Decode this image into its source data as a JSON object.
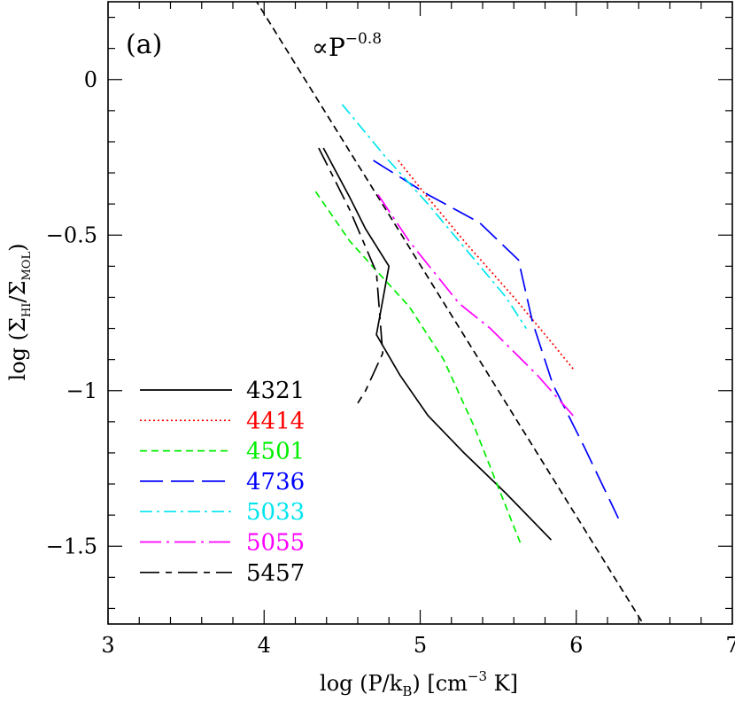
{
  "chart_data": {
    "type": "line",
    "panel_label": "(a)",
    "annotation": "∝P",
    "annotation_exponent": "−0.8",
    "xlabel_prefix": "log (P/k",
    "xlabel_sub": "B",
    "xlabel_suffix": ") [cm",
    "xlabel_sup": "−3",
    "xlabel_end": " K]",
    "ylabel": {
      "prefix": "log (Σ",
      "sub1": "HI",
      "mid": "/Σ",
      "sub2": "MOL",
      "end": ")"
    },
    "xlim": [
      3,
      7
    ],
    "ylim": [
      -1.75,
      0.25
    ],
    "xticks": [
      3,
      4,
      5,
      6,
      7
    ],
    "xtick_labels": [
      "3",
      "4",
      "5",
      "6",
      "7"
    ],
    "yticks": [
      0,
      -0.5,
      -1,
      -1.5
    ],
    "ytick_labels": [
      "0",
      "−0.5",
      "−1",
      "−1.5"
    ],
    "x_minor_step": 0.2,
    "y_minor_step": 0.1,
    "grid": false,
    "legend_position": "lower-left",
    "series": [
      {
        "name": "4321",
        "color": "#000000",
        "dash": "solid",
        "x": [
          4.38,
          4.55,
          4.65,
          4.8,
          4.72,
          4.87,
          5.05,
          5.28,
          5.55,
          5.84
        ],
        "y": [
          -0.22,
          -0.38,
          -0.48,
          -0.6,
          -0.82,
          -0.95,
          -1.08,
          -1.2,
          -1.33,
          -1.48
        ]
      },
      {
        "name": "4414",
        "color": "#ff0000",
        "dash": "dotted",
        "x": [
          4.86,
          5.05,
          5.3,
          5.6,
          5.85,
          5.98
        ],
        "y": [
          -0.26,
          -0.38,
          -0.53,
          -0.7,
          -0.85,
          -0.93
        ]
      },
      {
        "name": "4501",
        "color": "#00ee00",
        "dash": "shortdash",
        "x": [
          4.33,
          4.55,
          4.73,
          4.93,
          5.15,
          5.35,
          5.5,
          5.65
        ],
        "y": [
          -0.36,
          -0.52,
          -0.62,
          -0.73,
          -0.9,
          -1.12,
          -1.31,
          -1.5
        ]
      },
      {
        "name": "4736",
        "color": "#0000ff",
        "dash": "longdash",
        "x": [
          4.7,
          5.05,
          5.38,
          5.63,
          5.72,
          5.85,
          6.05,
          6.27
        ],
        "y": [
          -0.26,
          -0.37,
          -0.46,
          -0.58,
          -0.78,
          -0.98,
          -1.18,
          -1.41
        ]
      },
      {
        "name": "5033",
        "color": "#00e5ee",
        "dash": "dashdot",
        "x": [
          4.5,
          4.78,
          5.05,
          5.3,
          5.55,
          5.68
        ],
        "y": [
          -0.08,
          -0.25,
          -0.4,
          -0.55,
          -0.7,
          -0.8
        ]
      },
      {
        "name": "5055",
        "color": "#ff00ff",
        "dash": "longdashdot",
        "x": [
          4.73,
          4.93,
          5.25,
          5.45,
          5.75,
          5.98
        ],
        "y": [
          -0.37,
          -0.52,
          -0.72,
          -0.8,
          -0.95,
          -1.08
        ]
      },
      {
        "name": "5457",
        "color": "#000000",
        "dash": "longshort",
        "x": [
          4.35,
          4.55,
          4.72,
          4.76,
          4.65,
          4.6
        ],
        "y": [
          -0.22,
          -0.42,
          -0.62,
          -0.88,
          -1.0,
          -1.04
        ]
      }
    ],
    "reference_line": {
      "label": "∝P−0.8",
      "color": "#000000",
      "dash": "shortdash",
      "x": [
        3.94,
        6.43
      ],
      "y": [
        0.26,
        -1.75
      ]
    }
  }
}
